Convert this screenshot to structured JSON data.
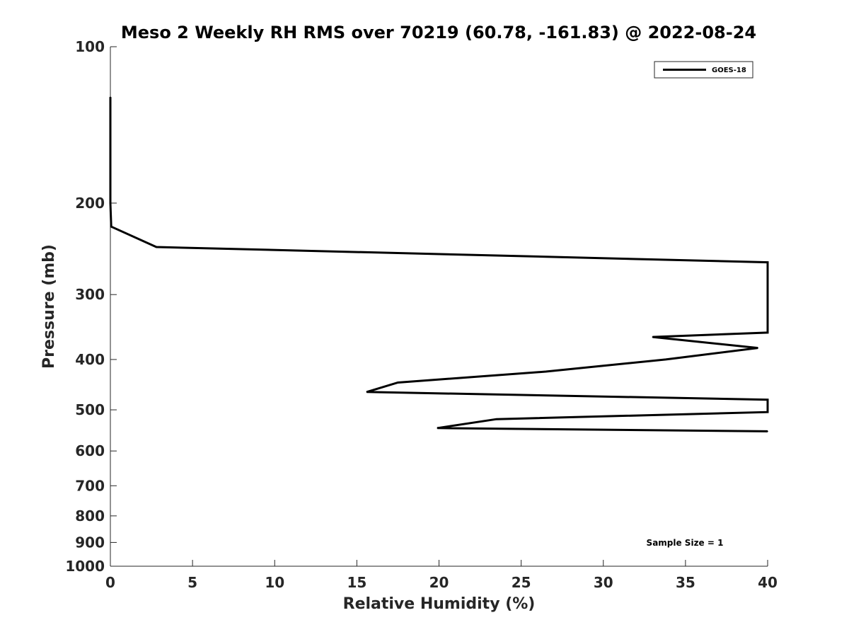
{
  "chart_data": {
    "type": "line",
    "title": "Meso 2 Weekly RH RMS over 70219 (60.78, -161.83) @ 2022-08-24",
    "xlabel": "Relative Humidity (%)",
    "ylabel": "Pressure (mb)",
    "xlim": [
      0,
      40
    ],
    "ylim": [
      100,
      1000
    ],
    "yscale": "log",
    "y_reversed": true,
    "grid": false,
    "legend_position": "top-right",
    "x_ticks": [
      0,
      5,
      10,
      15,
      20,
      25,
      30,
      35,
      40
    ],
    "y_ticks": [
      100,
      200,
      300,
      400,
      500,
      600,
      700,
      800,
      900,
      1000
    ],
    "series": [
      {
        "name": "GOES-18",
        "color": "#000000",
        "points": [
          {
            "x": 0.0,
            "y": 125
          },
          {
            "x": 0.0,
            "y": 150
          },
          {
            "x": 0.0,
            "y": 200
          },
          {
            "x": 0.05,
            "y": 222
          },
          {
            "x": 2.8,
            "y": 243
          },
          {
            "x": 40.0,
            "y": 260
          },
          {
            "x": 40.0,
            "y": 355
          },
          {
            "x": 33.0,
            "y": 362
          },
          {
            "x": 39.4,
            "y": 380
          },
          {
            "x": 33.8,
            "y": 400
          },
          {
            "x": 26.5,
            "y": 422
          },
          {
            "x": 17.5,
            "y": 443
          },
          {
            "x": 15.6,
            "y": 462
          },
          {
            "x": 40.0,
            "y": 478
          },
          {
            "x": 40.0,
            "y": 505
          },
          {
            "x": 23.5,
            "y": 521
          },
          {
            "x": 19.9,
            "y": 542
          },
          {
            "x": 40.0,
            "y": 550
          }
        ]
      }
    ],
    "annotations": [
      "Sample Size = 1"
    ]
  }
}
